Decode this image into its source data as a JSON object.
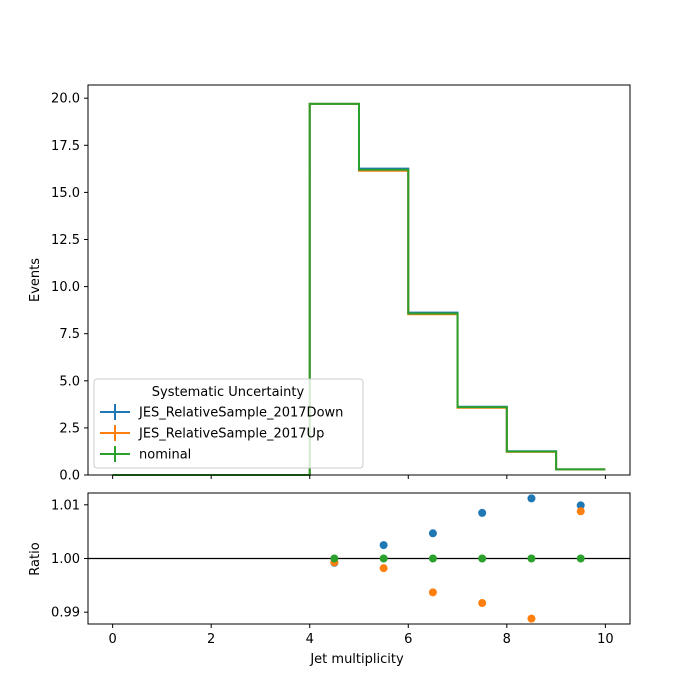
{
  "chart_data": [
    {
      "type": "line",
      "subtype": "step-histogram",
      "ylabel": "Events",
      "xlim": [
        -0.5,
        10.5
      ],
      "ylim": [
        0,
        20.7
      ],
      "yticks": [
        0.0,
        2.5,
        5.0,
        7.5,
        10.0,
        12.5,
        15.0,
        17.5,
        20.0
      ],
      "ytick_labels": [
        "0.0",
        "2.5",
        "5.0",
        "7.5",
        "10.0",
        "12.5",
        "15.0",
        "17.5",
        "20.0"
      ],
      "bin_edges": [
        0,
        1,
        2,
        3,
        4,
        5,
        6,
        7,
        8,
        9,
        10
      ],
      "series": [
        {
          "name": "JES_RelativeSample_2017Down",
          "color": "#1f77b4",
          "values": [
            0,
            0,
            0,
            0,
            19.7,
            16.26,
            8.62,
            3.62,
            1.26,
            0.3
          ]
        },
        {
          "name": "JES_RelativeSample_2017Up",
          "color": "#ff7f0e",
          "values": [
            0,
            0,
            0,
            0,
            19.7,
            16.15,
            8.53,
            3.57,
            1.23,
            0.3
          ]
        },
        {
          "name": "nominal",
          "color": "#2ca02c",
          "values": [
            0,
            0,
            0,
            0,
            19.7,
            16.2,
            8.57,
            3.6,
            1.25,
            0.3
          ]
        }
      ],
      "legend": {
        "title": "Systematic Uncertainty",
        "placement": "lower-left"
      },
      "grid": false
    },
    {
      "type": "scatter",
      "xlabel": "Jet multiplicity",
      "ylabel": "Ratio",
      "xlim": [
        -0.5,
        10.5
      ],
      "ylim": [
        0.9878,
        1.0122
      ],
      "xticks": [
        0,
        2,
        4,
        6,
        8,
        10
      ],
      "xtick_labels": [
        "0",
        "2",
        "4",
        "6",
        "8",
        "10"
      ],
      "yticks": [
        0.99,
        1.0,
        1.01
      ],
      "ytick_labels": [
        "0.99",
        "1.00",
        "1.01"
      ],
      "reference_line": 1.0,
      "x": [
        4.5,
        5.5,
        6.5,
        7.5,
        8.5,
        9.5
      ],
      "series": [
        {
          "name": "JES_RelativeSample_2017Down",
          "color": "#1f77b4",
          "values": [
            0.9992,
            1.0025,
            1.0047,
            1.0085,
            1.0112,
            1.0099
          ]
        },
        {
          "name": "JES_RelativeSample_2017Up",
          "color": "#ff7f0e",
          "values": [
            0.9993,
            0.9982,
            0.9937,
            0.9917,
            0.9888,
            1.0088
          ]
        },
        {
          "name": "nominal",
          "color": "#2ca02c",
          "values": [
            1.0,
            1.0,
            1.0,
            1.0,
            1.0,
            1.0
          ]
        }
      ],
      "grid": false
    }
  ]
}
